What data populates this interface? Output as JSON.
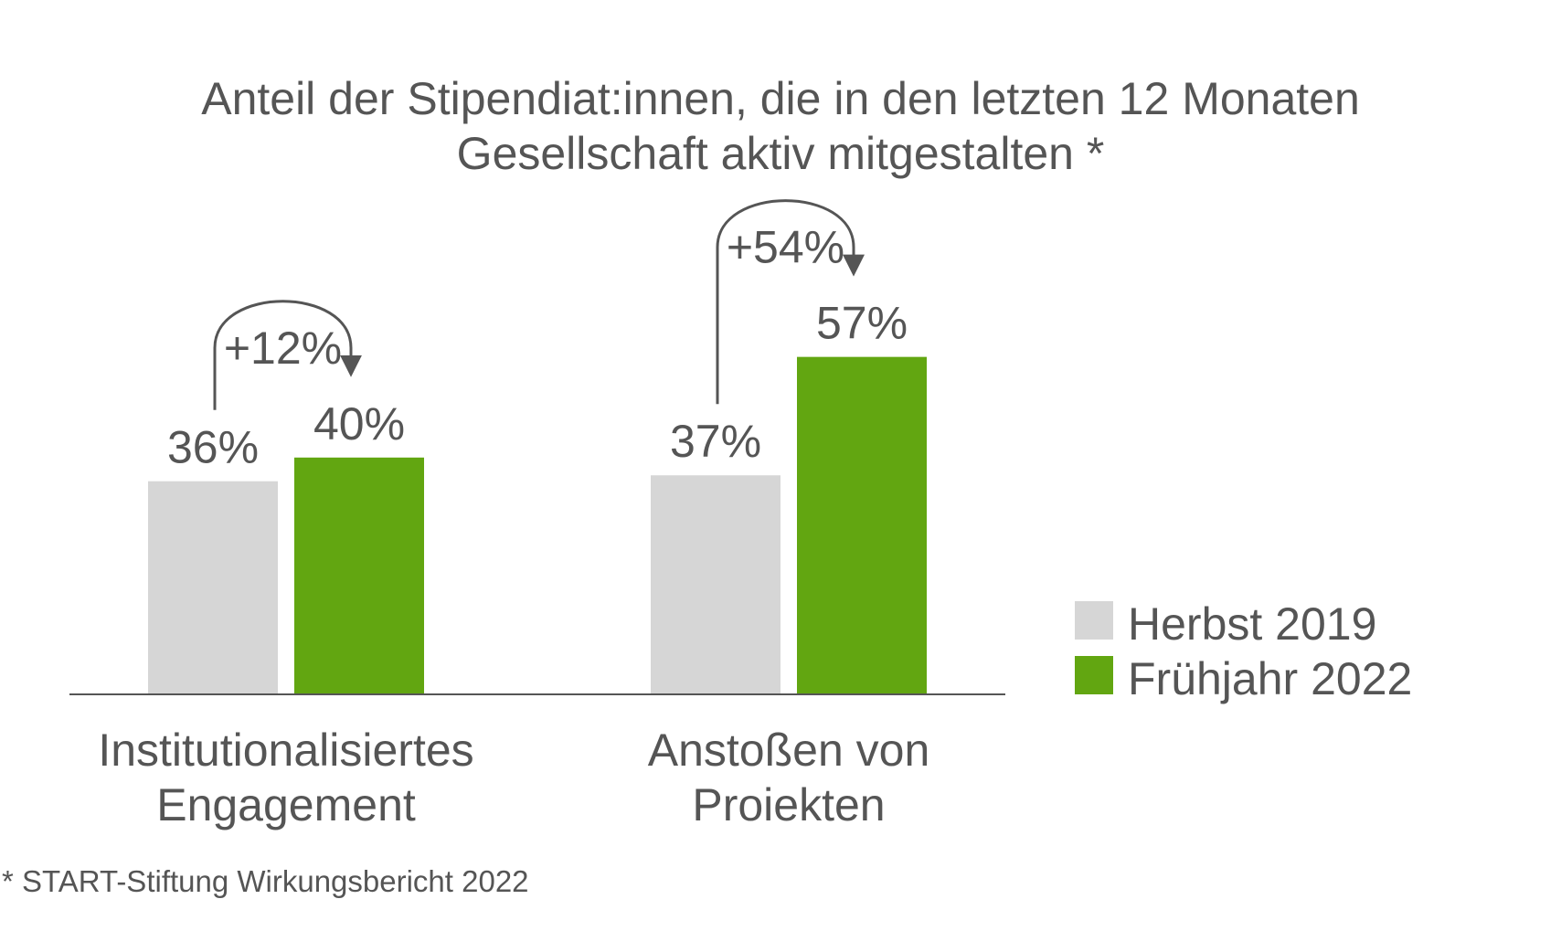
{
  "chart_data": {
    "type": "bar",
    "title": [
      "Anteil der Stipendiat:innen, die in den letzten 12 Monaten",
      "Gesellschaft aktiv mitgestalten *"
    ],
    "categories": [
      [
        "Institutionalisiertes",
        "Engagement"
      ],
      [
        "Anstoßen von",
        "Proiekten"
      ]
    ],
    "series": [
      {
        "name": "Herbst 2019",
        "color": "#d6d6d6",
        "values": [
          36,
          37
        ],
        "labels": [
          "36%",
          "37%"
        ]
      },
      {
        "name": "Frühjahr 2022",
        "color": "#62a611",
        "values": [
          40,
          57
        ],
        "labels": [
          "40%",
          "57%"
        ]
      }
    ],
    "changes": [
      "+12%",
      "+54%"
    ],
    "ylim": [
      0,
      100
    ],
    "grid": false,
    "legend": "right",
    "footnote": "* START-Stiftung Wirkungsbericht 2022"
  }
}
